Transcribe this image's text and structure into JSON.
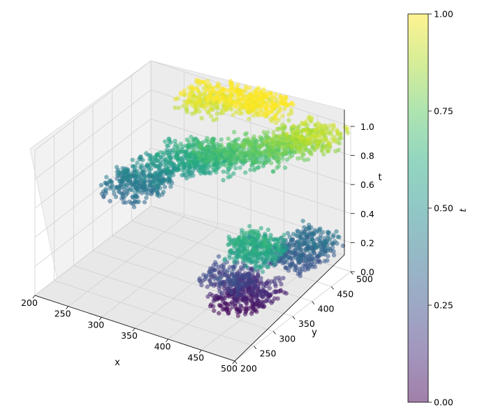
{
  "chart_data": {
    "type": "scatter",
    "projection": "3d",
    "title": "",
    "xlabel": "x",
    "ylabel": "y",
    "zlabel": "t",
    "xlim": [
      200,
      500
    ],
    "ylim": [
      200,
      500
    ],
    "zlim": [
      0.0,
      1.0
    ],
    "x_ticks": [
      "200",
      "250",
      "300",
      "350",
      "400",
      "450",
      "500"
    ],
    "y_ticks": [
      "200",
      "250",
      "300",
      "350",
      "400",
      "450",
      "500"
    ],
    "z_ticks": [
      "0.0",
      "0.2",
      "0.4",
      "0.6",
      "0.8",
      "1.0"
    ],
    "grid": true,
    "colormap": "viridis",
    "color_by": "t",
    "alpha": 0.5,
    "colorbar": {
      "label": "t",
      "range": [
        0.0,
        1.0
      ],
      "ticks": [
        "0.00",
        "0.25",
        "0.50",
        "0.75",
        "1.00"
      ]
    },
    "series": [
      {
        "description_points": [
          {
            "x": 225,
            "y": 400,
            "t": 0.38
          },
          {
            "x": 245,
            "y": 420,
            "t": 0.45
          },
          {
            "x": 275,
            "y": 440,
            "t": 0.55
          },
          {
            "x": 305,
            "y": 450,
            "t": 0.62
          },
          {
            "x": 335,
            "y": 440,
            "t": 0.66
          },
          {
            "x": 365,
            "y": 460,
            "t": 0.7
          },
          {
            "x": 395,
            "y": 470,
            "t": 0.74
          },
          {
            "x": 425,
            "y": 480,
            "t": 0.82
          },
          {
            "x": 455,
            "y": 490,
            "t": 0.88
          },
          {
            "x": 300,
            "y": 470,
            "t": 0.95
          },
          {
            "x": 340,
            "y": 485,
            "t": 0.98
          },
          {
            "x": 380,
            "y": 490,
            "t": 1.0
          },
          {
            "x": 430,
            "y": 330,
            "t": 0.05
          },
          {
            "x": 445,
            "y": 350,
            "t": 0.12
          },
          {
            "x": 420,
            "y": 320,
            "t": 0.2
          },
          {
            "x": 480,
            "y": 390,
            "t": 0.3
          },
          {
            "x": 490,
            "y": 420,
            "t": 0.35
          },
          {
            "x": 475,
            "y": 300,
            "t": 0.55
          },
          {
            "x": 490,
            "y": 270,
            "t": 0.6
          }
        ]
      }
    ]
  }
}
